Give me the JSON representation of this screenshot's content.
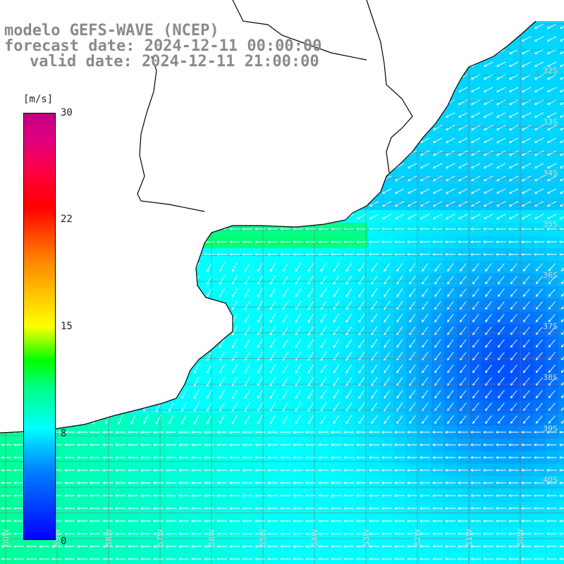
{
  "header": {
    "line1": "modelo GEFS-WAVE (NCEP)",
    "line2": "forecast date: 2024-12-11 00:00:00",
    "line3": "valid date: 2024-12-11 21:00:00"
  },
  "colorbar": {
    "unit": "[m/s]",
    "ticks": [
      {
        "label": "30",
        "value": 30
      },
      {
        "label": "22",
        "value": 22
      },
      {
        "label": "15",
        "value": 15
      },
      {
        "label": "8",
        "value": 8
      },
      {
        "label": "0",
        "value": 0
      }
    ],
    "min": 0,
    "max": 30
  },
  "grid": {
    "lat_labels": [
      "32S",
      "33S",
      "34S",
      "35S",
      "36S",
      "37S",
      "38S",
      "39S",
      "40S"
    ],
    "lon_labels": [
      "60W",
      "59W",
      "58W",
      "57W",
      "56W",
      "55W",
      "54W",
      "53W",
      "52W",
      "51W",
      "50W"
    ]
  },
  "colors": {
    "land": "#ffffff",
    "coast": "#000000",
    "grid": "#777777",
    "arrows": "#ffffff",
    "label": "#8a8a8a"
  },
  "field": {
    "description_key": "wind_speed_with_direction_arrows"
  }
}
